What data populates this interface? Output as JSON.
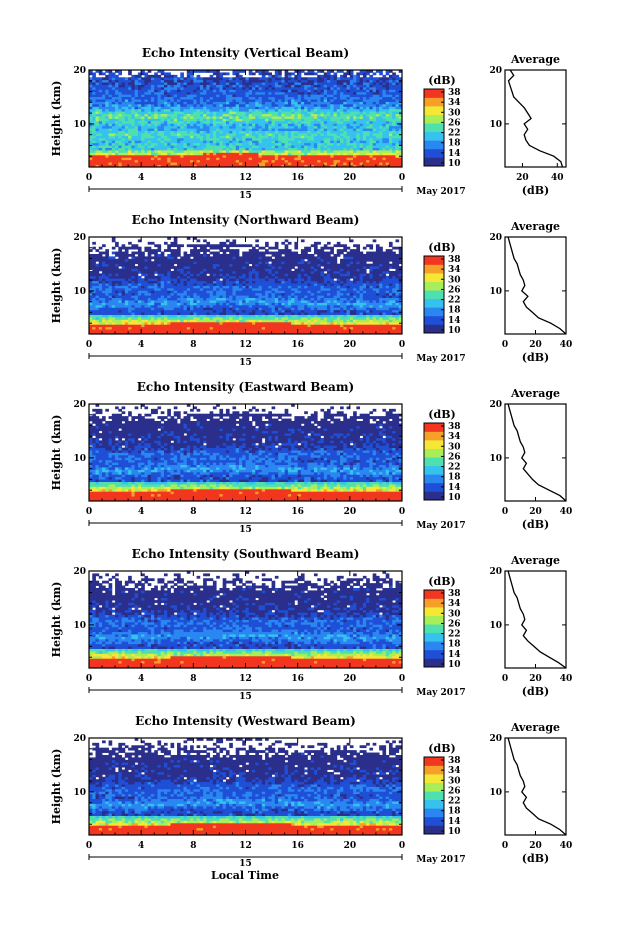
{
  "figure": {
    "bottom_label": "Local Time"
  },
  "colorbar_levels": [
    10,
    14,
    18,
    22,
    26,
    30,
    34,
    38
  ],
  "colormap": [
    "#2b2f8c",
    "#1f4fd6",
    "#2a86f0",
    "#36c2ef",
    "#4fe0b0",
    "#a8ee58",
    "#f4e736",
    "#f6a02a",
    "#f2361f"
  ],
  "chart_data": [
    {
      "type": "heatmap",
      "title": "Echo Intensity (Vertical Beam)",
      "ylabel": "Height (km)",
      "x_ticks": [
        "0",
        "4",
        "8",
        "12",
        "16",
        "20",
        "0"
      ],
      "date_label": "15",
      "month_label": "May 2017",
      "xlim": [
        0,
        24
      ],
      "ylim": [
        2,
        20
      ],
      "y_ticks": [
        "20",
        "10"
      ],
      "colorbar_label": "(dB)",
      "colorbar_ticks": [
        "38",
        "34",
        "30",
        "26",
        "22",
        "18",
        "14",
        "10"
      ],
      "profile": {
        "title": "Average",
        "xlabel": "(dB)",
        "x_ticks": [
          "20",
          "40"
        ],
        "xlim": [
          10,
          45
        ],
        "y_ticks": [
          "20",
          "10"
        ],
        "height": [
          2,
          3,
          4,
          5,
          6,
          7,
          8,
          9,
          10,
          11,
          12,
          13,
          14,
          15,
          16,
          17,
          18,
          19,
          20
        ],
        "power": [
          43,
          42,
          38,
          30,
          24,
          22,
          21,
          23,
          21,
          25,
          23,
          21,
          18,
          15,
          14,
          13,
          12,
          15,
          13
        ]
      }
    },
    {
      "type": "heatmap",
      "title": "Echo Intensity (Northward Beam)",
      "ylabel": "Height (km)",
      "x_ticks": [
        "0",
        "4",
        "8",
        "12",
        "16",
        "20",
        "0"
      ],
      "date_label": "15",
      "month_label": "May 2017",
      "xlim": [
        0,
        24
      ],
      "ylim": [
        2,
        20
      ],
      "y_ticks": [
        "20",
        "10"
      ],
      "colorbar_label": "(dB)",
      "colorbar_ticks": [
        "38",
        "34",
        "30",
        "26",
        "22",
        "18",
        "14",
        "10"
      ],
      "profile": {
        "title": "Average",
        "xlabel": "(dB)",
        "x_ticks": [
          "0",
          "20",
          "40"
        ],
        "xlim": [
          0,
          40
        ],
        "y_ticks": [
          "20",
          "10"
        ],
        "height": [
          2,
          3,
          4,
          5,
          6,
          7,
          8,
          9,
          10,
          11,
          12,
          13,
          14,
          15,
          16,
          17,
          18,
          19,
          20
        ],
        "power": [
          40,
          36,
          30,
          22,
          18,
          14,
          12,
          15,
          11,
          13,
          12,
          10,
          9,
          8,
          6,
          5,
          4,
          3,
          2
        ]
      }
    },
    {
      "type": "heatmap",
      "title": "Echo Intensity (Eastward Beam)",
      "ylabel": "Height (km)",
      "x_ticks": [
        "0",
        "4",
        "8",
        "12",
        "16",
        "20",
        "0"
      ],
      "date_label": "15",
      "month_label": "May 2017",
      "xlim": [
        0,
        24
      ],
      "ylim": [
        2,
        20
      ],
      "y_ticks": [
        "20",
        "10"
      ],
      "colorbar_label": "(dB)",
      "colorbar_ticks": [
        "38",
        "34",
        "30",
        "26",
        "22",
        "18",
        "14",
        "10"
      ],
      "profile": {
        "title": "Average",
        "xlabel": "(dB)",
        "x_ticks": [
          "0",
          "20",
          "40"
        ],
        "xlim": [
          0,
          40
        ],
        "y_ticks": [
          "20",
          "10"
        ],
        "height": [
          2,
          3,
          4,
          5,
          6,
          7,
          8,
          9,
          10,
          11,
          12,
          13,
          14,
          15,
          16,
          17,
          18,
          19,
          20
        ],
        "power": [
          40,
          36,
          29,
          22,
          18,
          15,
          12,
          14,
          11,
          13,
          12,
          10,
          9,
          8,
          6,
          5,
          4,
          3,
          2
        ]
      }
    },
    {
      "type": "heatmap",
      "title": "Echo Intensity (Southward Beam)",
      "ylabel": "Height (km)",
      "x_ticks": [
        "0",
        "4",
        "8",
        "12",
        "16",
        "20",
        "0"
      ],
      "date_label": "15",
      "month_label": "May 2017",
      "xlim": [
        0,
        24
      ],
      "ylim": [
        2,
        20
      ],
      "y_ticks": [
        "20",
        "10"
      ],
      "colorbar_label": "(dB)",
      "colorbar_ticks": [
        "38",
        "34",
        "30",
        "26",
        "22",
        "18",
        "14",
        "10"
      ],
      "profile": {
        "title": "Average",
        "xlabel": "(dB)",
        "x_ticks": [
          "0",
          "20",
          "40"
        ],
        "xlim": [
          0,
          40
        ],
        "y_ticks": [
          "20",
          "10"
        ],
        "height": [
          2,
          3,
          4,
          5,
          6,
          7,
          8,
          9,
          10,
          11,
          12,
          13,
          14,
          15,
          16,
          17,
          18,
          19,
          20
        ],
        "power": [
          40,
          35,
          29,
          23,
          19,
          15,
          12,
          14,
          11,
          13,
          12,
          10,
          9,
          8,
          6,
          5,
          4,
          3,
          2
        ]
      }
    },
    {
      "type": "heatmap",
      "title": "Echo Intensity (Westward Beam)",
      "ylabel": "Height (km)",
      "x_ticks": [
        "0",
        "4",
        "8",
        "12",
        "16",
        "20",
        "0"
      ],
      "date_label": "15",
      "month_label": "May 2017",
      "xlim": [
        0,
        24
      ],
      "ylim": [
        2,
        20
      ],
      "y_ticks": [
        "20",
        "10"
      ],
      "colorbar_label": "(dB)",
      "colorbar_ticks": [
        "38",
        "34",
        "30",
        "26",
        "22",
        "18",
        "14",
        "10"
      ],
      "profile": {
        "title": "Average",
        "xlabel": "(dB)",
        "x_ticks": [
          "0",
          "20",
          "40"
        ],
        "xlim": [
          0,
          40
        ],
        "y_ticks": [
          "20",
          "10"
        ],
        "height": [
          2,
          3,
          4,
          5,
          6,
          7,
          8,
          9,
          10,
          11,
          12,
          13,
          14,
          15,
          16,
          17,
          18,
          19,
          20
        ],
        "power": [
          40,
          36,
          30,
          22,
          18,
          14,
          12,
          14,
          11,
          13,
          12,
          10,
          9,
          8,
          6,
          5,
          4,
          3,
          2
        ]
      }
    }
  ]
}
